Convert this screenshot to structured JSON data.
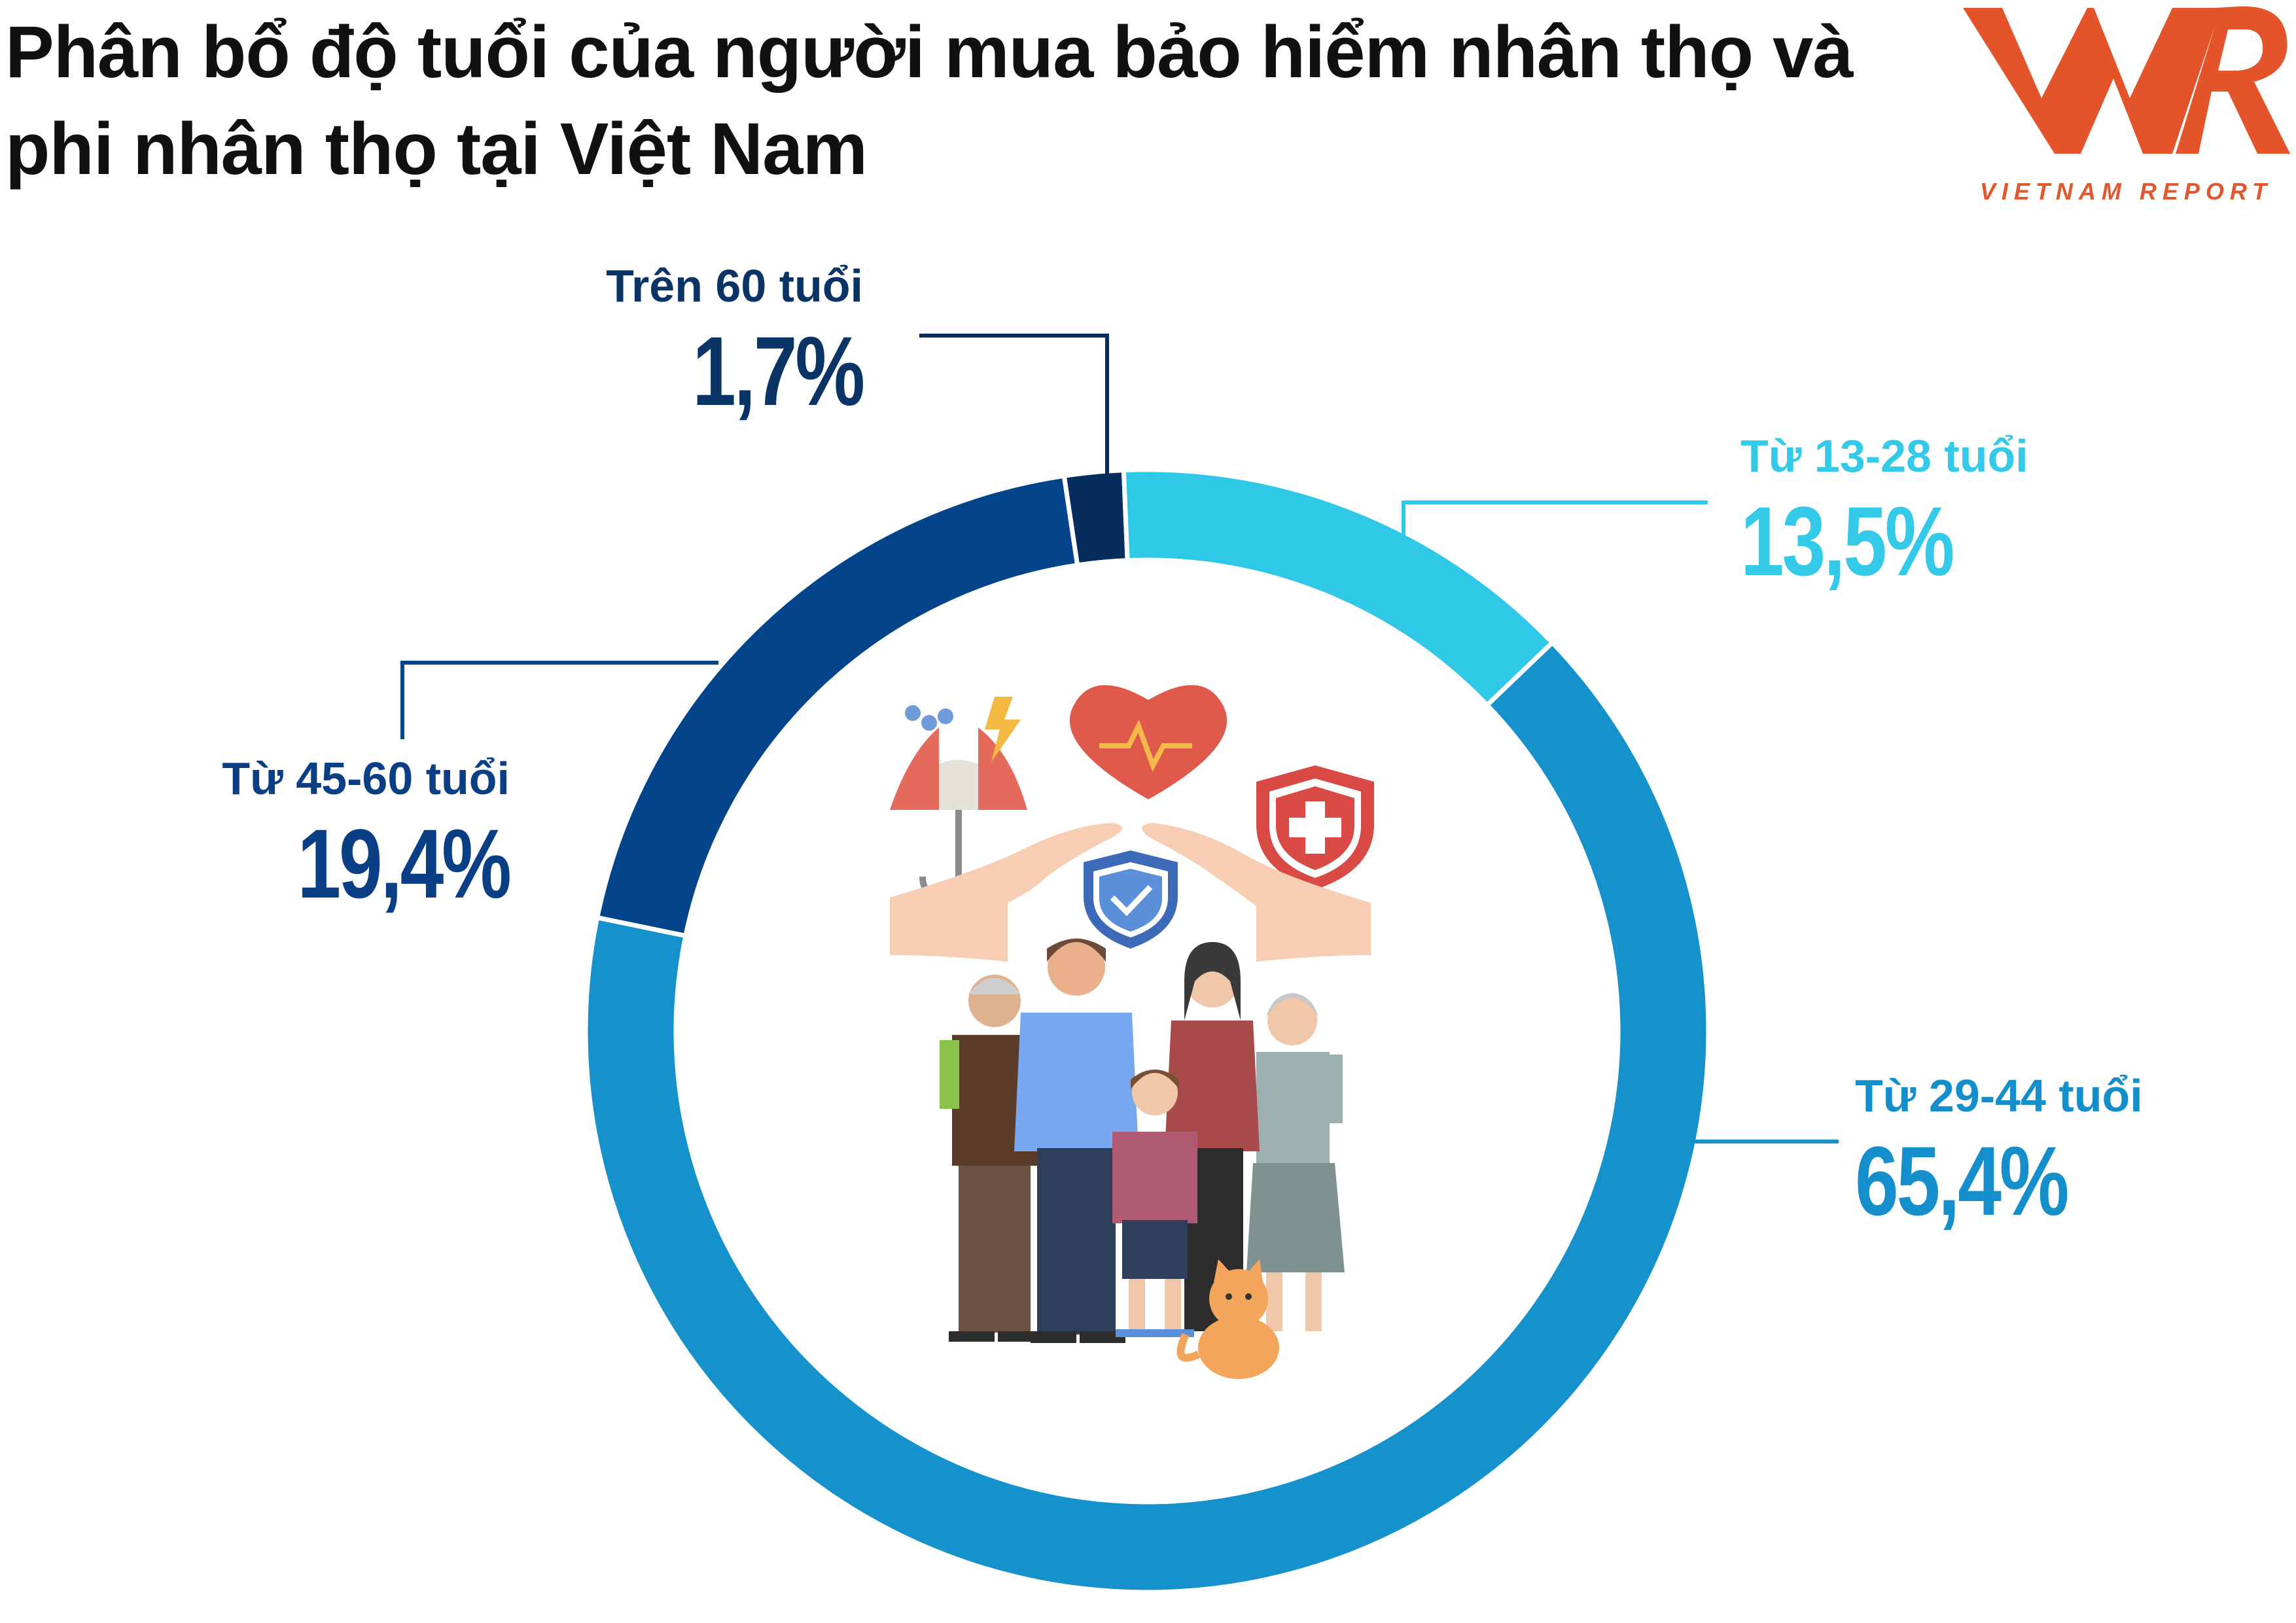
{
  "title": "Phân bổ độ tuổi của người mua bảo hiểm nhân thọ và phi nhân thọ tại Việt Nam",
  "logo": {
    "text": "VIETNAM REPORT",
    "mark": "VNR"
  },
  "colors": {
    "tren60": "#062d5e",
    "tu13_28": "#2fc9e7",
    "tu29_44": "#1591cb",
    "tu45_60": "#04448a"
  },
  "center_illustration": "family-insurance-icon",
  "chart_data": {
    "type": "pie",
    "style": "donut",
    "title": "",
    "unit": "%",
    "categories": [
      "Trên 60 tuổi",
      "Từ 13-28 tuổi",
      "Từ 29-44 tuổi",
      "Từ 45-60 tuổi"
    ],
    "values": [
      1.7,
      13.5,
      65.4,
      19.4
    ],
    "value_labels": [
      "1,7%",
      "13,5%",
      "65,4%",
      "19,4%"
    ],
    "slice_order": "clockwise starting from top",
    "legend": "none (direct labels with leader lines)"
  }
}
